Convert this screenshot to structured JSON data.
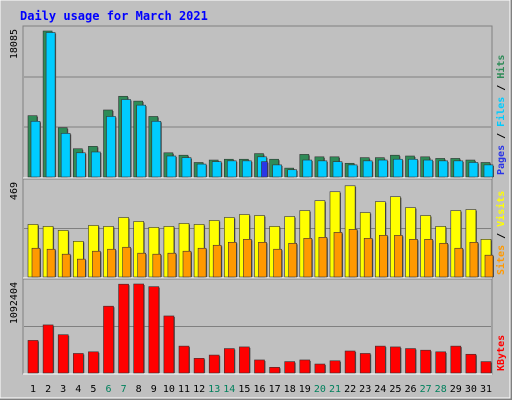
{
  "chart_data": {
    "type": "bar",
    "title": "Daily usage for March 2021",
    "days": [
      "1",
      "2",
      "3",
      "4",
      "5",
      "6",
      "7",
      "8",
      "9",
      "10",
      "11",
      "12",
      "13",
      "14",
      "15",
      "16",
      "17",
      "18",
      "19",
      "20",
      "21",
      "22",
      "23",
      "24",
      "25",
      "26",
      "27",
      "28",
      "29",
      "30",
      "31"
    ],
    "weekend_days": [
      "6",
      "7",
      "13",
      "14",
      "20",
      "21",
      "27",
      "28"
    ],
    "panels": [
      {
        "id": "hits-files",
        "ymax": 18085,
        "ymax_label": "18085",
        "right_label_parts": [
          "Pages",
          " / ",
          "Files",
          " / ",
          "Hits"
        ],
        "series": [
          {
            "name": "Hits",
            "color": "#2e8b57",
            "values": [
              7600,
              18085,
              6100,
              3500,
              3800,
              8300,
              10000,
              9400,
              7500,
              3000,
              2700,
              1800,
              2100,
              2200,
              2200,
              2900,
              2200,
              1100,
              2800,
              2500,
              2500,
              1700,
              2400,
              2400,
              2700,
              2600,
              2500,
              2300,
              2300,
              2100,
              1800
            ]
          },
          {
            "name": "Files",
            "color": "#00ccff",
            "values": [
              6900,
              17900,
              5400,
              3000,
              3100,
              7500,
              9600,
              8900,
              6900,
              2600,
              2400,
              1600,
              1900,
              2000,
              2000,
              2500,
              1500,
              900,
              2100,
              2000,
              1900,
              1500,
              2000,
              2100,
              2200,
              2200,
              2100,
              2000,
              2000,
              1800,
              1500
            ]
          },
          {
            "name": "Pages",
            "color": "#2b36e6",
            "values": [
              0,
              0,
              0,
              0,
              0,
              0,
              0,
              0,
              0,
              0,
              0,
              0,
              0,
              0,
              0,
              1900,
              0,
              0,
              0,
              0,
              0,
              0,
              0,
              0,
              0,
              0,
              0,
              0,
              0,
              0,
              0
            ]
          }
        ]
      },
      {
        "id": "visits-sites",
        "ymax": 469,
        "ymax_label": "469",
        "right_label_parts": [
          "Sites",
          " / ",
          "Visits"
        ],
        "series": [
          {
            "name": "Visits",
            "color": "#ffff00",
            "values": [
              265,
              255,
              235,
              180,
              260,
              255,
              300,
              280,
              250,
              255,
              270,
              265,
              285,
              300,
              315,
              310,
              255,
              305,
              335,
              385,
              430,
              460,
              325,
              380,
              405,
              350,
              310,
              255,
              335,
              340,
              190
            ]
          },
          {
            "name": "Sites",
            "color": "#ff9900",
            "values": [
              145,
              140,
              115,
              90,
              130,
              140,
              150,
              120,
              115,
              120,
              130,
              145,
              160,
              175,
              190,
              175,
              140,
              170,
              195,
              200,
              225,
              240,
              195,
              210,
              210,
              190,
              190,
              170,
              145,
              175,
              110
            ]
          }
        ]
      },
      {
        "id": "kbytes",
        "ymax": 1092404,
        "ymax_label": "1092404",
        "right_label_parts": [
          "KBytes"
        ],
        "series": [
          {
            "name": "KBytes",
            "color": "#ff0000",
            "values": [
              400000,
              590000,
              470000,
              240000,
              260000,
              820000,
              1090000,
              1092404,
              1060000,
              700000,
              330000,
              180000,
              220000,
              300000,
              320000,
              160000,
              70000,
              140000,
              160000,
              110000,
              150000,
              270000,
              240000,
              330000,
              320000,
              300000,
              280000,
              260000,
              330000,
              230000,
              140000
            ]
          }
        ]
      }
    ],
    "colors": {
      "background": "#c0c0c0",
      "title": "#0000ff",
      "weekend_label": "#00805c",
      "weekday_label": "#000000",
      "grid": "#808080",
      "bar_edge": "#333333"
    },
    "grid": true
  }
}
